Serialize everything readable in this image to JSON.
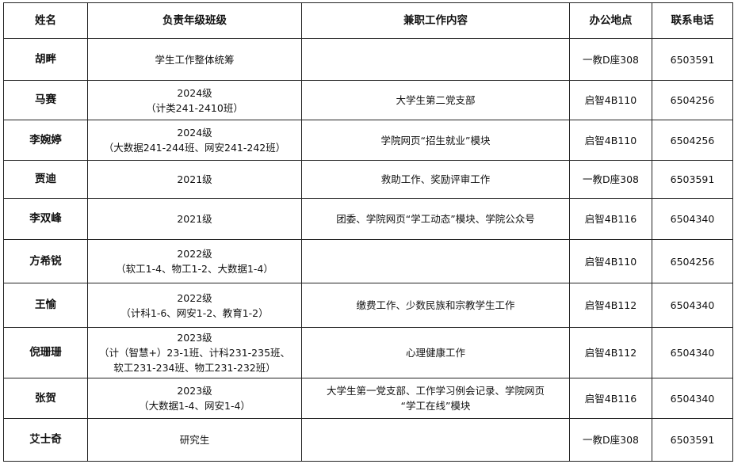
{
  "headers": [
    "姓名",
    "负责年级班级",
    "兼职工作内容",
    "办公地点",
    "联系电话"
  ],
  "rows": [
    {
      "name": "胡畔",
      "grade": [
        "学生工作整体统筹"
      ],
      "duty": [],
      "office": "一教D座308",
      "phone": "6503591"
    },
    {
      "name": "马赛",
      "grade": [
        "2024级",
        "（计类241-2410班）"
      ],
      "duty": [
        "大学生第二党支部"
      ],
      "office": "启智4B110",
      "phone": "6504256"
    },
    {
      "name": "李婉婷",
      "grade": [
        "2024级",
        "（大数据241-244班、网安241-242班）"
      ],
      "duty": [
        "学院网页“招生就业”模块"
      ],
      "office": "启智4B110",
      "phone": "6504256"
    },
    {
      "name": "贾迪",
      "grade": [
        "2021级"
      ],
      "duty": [
        "救助工作、奖励评审工作"
      ],
      "office": "一教D座308",
      "phone": "6503591"
    },
    {
      "name": "李双峰",
      "grade": [
        "2021级"
      ],
      "duty": [
        "团委、学院网页“学工动态”模块、学院公众号"
      ],
      "office": "启智4B116",
      "phone": "6504340"
    },
    {
      "name": "方希锐",
      "grade": [
        "2022级",
        "（软工1-4、物工1-2、大数据1-4）"
      ],
      "duty": [],
      "office": "启智4B110",
      "phone": "6504256"
    },
    {
      "name": "王愉",
      "grade": [
        "2022级",
        "（计科1-6、网安1-2、教育1-2）"
      ],
      "duty": [
        "缴费工作、少数民族和宗教学生工作"
      ],
      "office": "启智4B112",
      "phone": "6504340"
    },
    {
      "name": "倪珊珊",
      "grade": [
        "2023级",
        "（计（智慧+）23-1班、计科231-235班、",
        "软工231-234班、物工231-232班）"
      ],
      "duty": [
        "心理健康工作"
      ],
      "office": "启智4B112",
      "phone": "6504340"
    },
    {
      "name": "张贺",
      "grade": [
        "2023级",
        "（大数据1-4、网安1-4）"
      ],
      "duty": [
        "大学生第一党支部、工作学习例会记录、学院网页",
        "“学工在线”模块"
      ],
      "office": "启智4B116",
      "phone": "6504340"
    },
    {
      "name": "艾士奇",
      "grade": [
        "研究生"
      ],
      "duty": [],
      "office": "一教D座308",
      "phone": "6503591"
    }
  ]
}
